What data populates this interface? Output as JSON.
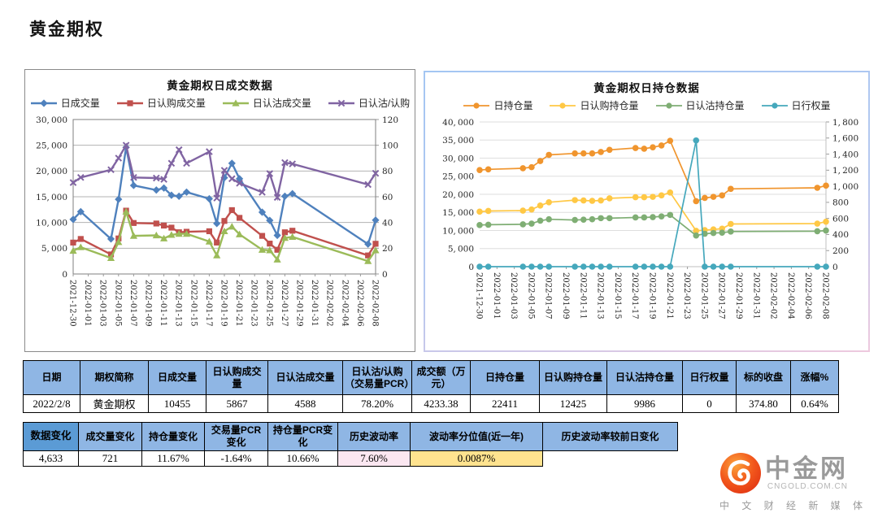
{
  "page": {
    "title": "黄金期权"
  },
  "colors": {
    "table_header_blue": "#8fb6e4",
    "table_label_blue": "#5b9bd5",
    "highlight_pink": "#fbe7f1",
    "highlight_yellow": "#ffe38f",
    "chart2_border_blue": "#a4c6f2",
    "logo_red": "#ee4a10"
  },
  "chart_data": [
    {
      "type": "line",
      "title": "黄金期权日成交数据",
      "x_start": "2021-12-30",
      "x_end": "2022-02-08",
      "x_labels": [
        "2021-12-30",
        "2022-01-01",
        "2022-01-03",
        "2022-01-05",
        "2022-01-07",
        "2022-01-09",
        "2022-01-11",
        "2022-01-13",
        "2022-01-15",
        "2022-01-17",
        "2022-01-19",
        "2022-01-21",
        "2022-01-23",
        "2022-01-25",
        "2022-01-27",
        "2022-01-29",
        "2022-01-31",
        "2022-02-02",
        "2022-02-04",
        "2022-02-06",
        "2022-02-08"
      ],
      "dates": [
        "2021-12-30",
        "2021-12-31",
        "2022-01-04",
        "2022-01-05",
        "2022-01-06",
        "2022-01-07",
        "2022-01-10",
        "2022-01-11",
        "2022-01-12",
        "2022-01-13",
        "2022-01-14",
        "2022-01-17",
        "2022-01-18",
        "2022-01-19",
        "2022-01-20",
        "2022-01-21",
        "2022-01-24",
        "2022-01-25",
        "2022-01-26",
        "2022-01-27",
        "2022-01-28",
        "2022-02-07",
        "2022-02-08"
      ],
      "left_axis": {
        "min": 0,
        "max": 30000,
        "step": 5000
      },
      "right_axis": {
        "min": 0,
        "max": 120,
        "step": 20
      },
      "series": [
        {
          "name": "日成交量",
          "color": "#4F81BD",
          "marker": "diamond",
          "axis": "left",
          "values": [
            10600,
            12100,
            6800,
            14500,
            24600,
            17200,
            16300,
            16700,
            15300,
            15100,
            15900,
            14600,
            9800,
            18700,
            21500,
            18500,
            12000,
            10400,
            7500,
            15100,
            15600,
            5800,
            10455
          ]
        },
        {
          "name": "日认购成交量",
          "color": "#C0504D",
          "marker": "square",
          "axis": "left",
          "values": [
            6100,
            6800,
            3800,
            6900,
            12300,
            9900,
            9800,
            9400,
            9000,
            8100,
            8200,
            8300,
            6100,
            10300,
            12400,
            10900,
            7400,
            5900,
            4700,
            8100,
            8400,
            3600,
            5867
          ]
        },
        {
          "name": "日认沽成交量",
          "color": "#9BBB59",
          "marker": "triangle",
          "axis": "left",
          "values": [
            4500,
            5200,
            3100,
            6200,
            12100,
            7400,
            7500,
            6900,
            7600,
            7800,
            7800,
            6300,
            3600,
            8300,
            9200,
            7700,
            4700,
            4600,
            2800,
            7000,
            7200,
            2500,
            4588
          ]
        },
        {
          "name": "日认沽/认购",
          "color": "#8064A2",
          "marker": "x",
          "axis": "right",
          "values": [
            71,
            75,
            81,
            90,
            100,
            75,
            74.5,
            73.5,
            86,
            96.5,
            86,
            95,
            59,
            80.5,
            74,
            70.5,
            63.5,
            78,
            59.5,
            86.5,
            85.5,
            69.5,
            78.2
          ]
        }
      ]
    },
    {
      "type": "line",
      "title": "黄金期权日持仓数据",
      "x_start": "2021-12-30",
      "x_end": "2022-02-08",
      "x_labels": [
        "2021-12-30",
        "2022-01-01",
        "2022-01-03",
        "2022-01-05",
        "2022-01-07",
        "2022-01-09",
        "2022-01-11",
        "2022-01-13",
        "2022-01-15",
        "2022-01-17",
        "2022-01-19",
        "2022-01-21",
        "2022-01-23",
        "2022-01-25",
        "2022-01-27",
        "2022-01-29",
        "2022-01-31",
        "2022-02-02",
        "2022-02-04",
        "2022-02-06",
        "2022-02-08"
      ],
      "dates": [
        "2021-12-30",
        "2021-12-31",
        "2022-01-04",
        "2022-01-05",
        "2022-01-06",
        "2022-01-07",
        "2022-01-10",
        "2022-01-11",
        "2022-01-12",
        "2022-01-13",
        "2022-01-14",
        "2022-01-17",
        "2022-01-18",
        "2022-01-19",
        "2022-01-20",
        "2022-01-21",
        "2022-01-24",
        "2022-01-25",
        "2022-01-26",
        "2022-01-27",
        "2022-01-28",
        "2022-02-07",
        "2022-02-08"
      ],
      "left_axis": {
        "min": 0,
        "max": 40000,
        "step": 5000
      },
      "right_axis": {
        "min": 0,
        "max": 1800,
        "step": 200
      },
      "series": [
        {
          "name": "日持仓量",
          "color": "#F0952E",
          "marker": "circle",
          "axis": "left",
          "values": [
            26700,
            26900,
            27200,
            27500,
            29200,
            30900,
            31300,
            31300,
            31300,
            31700,
            32300,
            32800,
            32600,
            33000,
            33500,
            34800,
            18100,
            19000,
            19300,
            19700,
            21500,
            21800,
            22411
          ]
        },
        {
          "name": "日认购持仓量",
          "color": "#FFC845",
          "marker": "circle",
          "axis": "left",
          "values": [
            15200,
            15400,
            15500,
            15800,
            16900,
            17800,
            18400,
            18300,
            18200,
            18300,
            18900,
            19200,
            19200,
            19300,
            19700,
            20500,
            9900,
            10100,
            10300,
            10500,
            11800,
            11900,
            12425
          ]
        },
        {
          "name": "日认沽持仓量",
          "color": "#7FAE74",
          "marker": "circle",
          "axis": "left",
          "values": [
            11500,
            11600,
            11700,
            11900,
            12700,
            13100,
            12900,
            13000,
            13100,
            13400,
            13400,
            13600,
            13600,
            13700,
            13900,
            14300,
            8600,
            9100,
            9300,
            9400,
            9700,
            9800,
            9986
          ]
        },
        {
          "name": "日行权量",
          "color": "#45A8BC",
          "marker": "circle",
          "axis": "right",
          "values": [
            0,
            0,
            0,
            0,
            0,
            0,
            0,
            0,
            0,
            0,
            0,
            0,
            0,
            0,
            0,
            0,
            1570,
            0,
            0,
            0,
            0,
            0,
            0
          ]
        }
      ]
    }
  ],
  "table1": {
    "headers": [
      "日期",
      "期权简称",
      "日成交量",
      "日认购成交量",
      "日认沽成交量",
      "日认沽/认购（交易量PCR）",
      "成交额（万元）",
      "日持仓量",
      "日认购持仓量",
      "日认沽持仓量",
      "日行权量",
      "标的收盘",
      "涨幅%"
    ],
    "row": [
      "2022/2/8",
      "黄金期权",
      "10455",
      "5867",
      "4588",
      "78.20%",
      "4233.38",
      "22411",
      "12425",
      "9986",
      "0",
      "374.80",
      "0.64%"
    ]
  },
  "table2": {
    "label": "数据变化",
    "headers": [
      "成交量变化",
      "持仓量变化",
      "交易量PCR变化",
      "持仓量PCR变化",
      "历史波动率",
      "波动率分位值(近一年)",
      "历史波动率较前日变化"
    ],
    "values": [
      "4,633",
      "721",
      "11.67%",
      "-1.64%",
      "10.66%",
      "7.60%",
      "0.0087%"
    ]
  },
  "logo": {
    "name": "中金网",
    "domain": "CNGOLD.COM.CN",
    "slogan": "中 文 财 经 新 媒 体"
  }
}
